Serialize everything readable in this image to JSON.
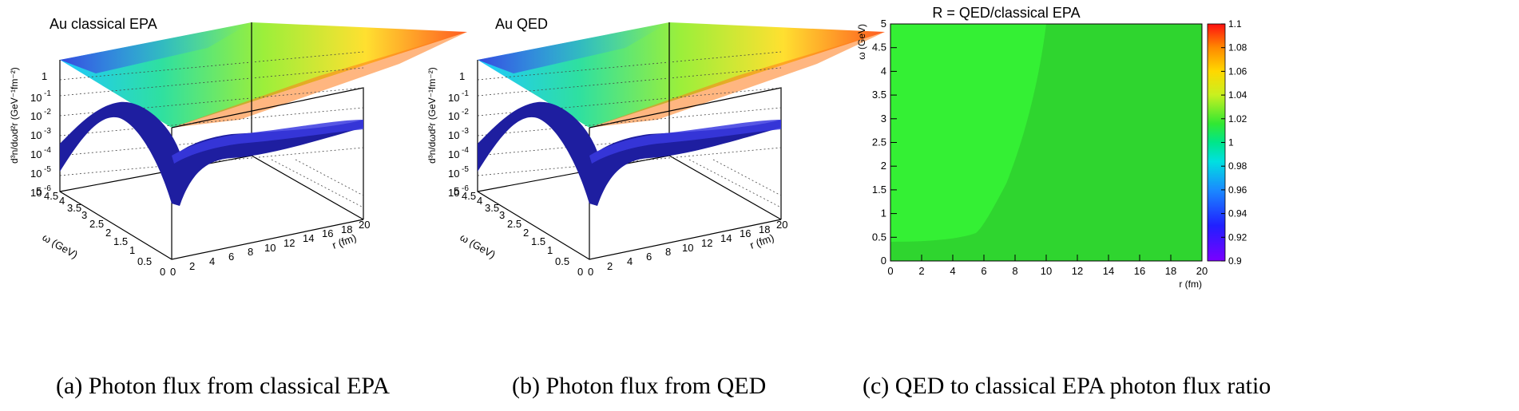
{
  "figure": {
    "captions": {
      "a": "(a)  Photon flux from classical EPA",
      "b": "(b)  Photon flux from QED",
      "c": "(c)  QED to classical EPA photon flux ratio"
    }
  },
  "chart_data": [
    {
      "type": "surface3d",
      "title": "Au classical EPA",
      "xlabel": "r (fm)",
      "ylabel": "ω (GeV)",
      "zlabel": "d³n/dωd²r (GeV⁻¹fm⁻²)",
      "xlim": [
        0,
        20
      ],
      "ylim": [
        0,
        5
      ],
      "zlim": [
        1e-06,
        10
      ],
      "zscale": "log",
      "x_ticks": [
        "0",
        "2",
        "4",
        "6",
        "8",
        "10",
        "12",
        "14",
        "16",
        "18",
        "20"
      ],
      "y_ticks": [
        "0",
        "0.5",
        "1",
        "1.5",
        "2",
        "2.5",
        "3",
        "3.5",
        "4",
        "4.5",
        "5"
      ],
      "z_ticks": [
        {
          "base": "1",
          "exp": ""
        },
        {
          "base": "10",
          "exp": "-1"
        },
        {
          "base": "10",
          "exp": "-2"
        },
        {
          "base": "10",
          "exp": "-3"
        },
        {
          "base": "10",
          "exp": "-4"
        },
        {
          "base": "10",
          "exp": "-5"
        },
        {
          "base": "10",
          "exp": "-6"
        }
      ]
    },
    {
      "type": "surface3d",
      "title": "Au QED",
      "xlabel": "r (fm)",
      "ylabel": "ω (GeV)",
      "zlabel": "d³n/dωd²r (GeV⁻¹fm⁻²)",
      "xlim": [
        0,
        20
      ],
      "ylim": [
        0,
        5
      ],
      "zlim": [
        1e-06,
        10
      ],
      "zscale": "log",
      "x_ticks": [
        "0",
        "2",
        "4",
        "6",
        "8",
        "10",
        "12",
        "14",
        "16",
        "18",
        "20"
      ],
      "y_ticks": [
        "0",
        "0.5",
        "1",
        "1.5",
        "2",
        "2.5",
        "3",
        "3.5",
        "4",
        "4.5",
        "5"
      ],
      "z_ticks": [
        {
          "base": "1",
          "exp": ""
        },
        {
          "base": "10",
          "exp": "-1"
        },
        {
          "base": "10",
          "exp": "-2"
        },
        {
          "base": "10",
          "exp": "-3"
        },
        {
          "base": "10",
          "exp": "-4"
        },
        {
          "base": "10",
          "exp": "-5"
        },
        {
          "base": "10",
          "exp": "-6"
        }
      ]
    },
    {
      "type": "heatmap",
      "title": "R = QED/classical EPA",
      "xlabel": "r (fm)",
      "ylabel": "ω (GeV)",
      "xlim": [
        0,
        20
      ],
      "ylim": [
        0,
        5
      ],
      "x_ticks": [
        "0",
        "2",
        "4",
        "6",
        "8",
        "10",
        "12",
        "14",
        "16",
        "18",
        "20"
      ],
      "y_ticks": [
        "0",
        "0.5",
        "1",
        "1.5",
        "2",
        "2.5",
        "3",
        "3.5",
        "4",
        "4.5",
        "5"
      ],
      "colorbar": {
        "range": [
          0.9,
          1.1
        ],
        "ticks": [
          "0.9",
          "0.92",
          "0.94",
          "0.96",
          "0.98",
          "1",
          "1.02",
          "1.04",
          "1.06",
          "1.08",
          "1.1"
        ]
      },
      "regions": [
        {
          "name": "r < ~10 fm (low r)",
          "value": 1.01,
          "color": "#34f034"
        },
        {
          "name": "r > ~10 fm (high r)",
          "value": 1.0,
          "color": "#2fd52f"
        }
      ]
    }
  ]
}
